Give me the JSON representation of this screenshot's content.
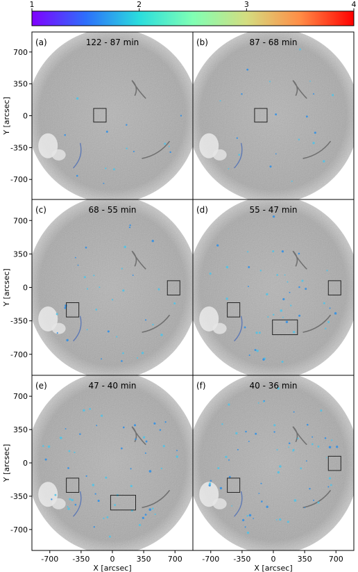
{
  "chart_data": {
    "type": "heatmap",
    "colorbar": {
      "ticks": [
        "1",
        "2",
        "3",
        "4"
      ],
      "range": [
        1,
        4
      ],
      "colormap": "rainbow",
      "colors": [
        "#8000ff",
        "#2d6ffb",
        "#2adddd",
        "#80ffb4",
        "#d4dd80",
        "#ff8d46",
        "#ff0000"
      ]
    },
    "xlabel": "X [arcsec]",
    "ylabel": "Y [arcsec]",
    "xticks": [
      "-700",
      "-350",
      "0",
      "350",
      "700"
    ],
    "yticks": [
      "700",
      "350",
      "0",
      "-350",
      "-700"
    ],
    "xlim": [
      -900,
      900
    ],
    "ylim": [
      -920,
      920
    ],
    "panels": [
      {
        "label": "(a)",
        "title": "122 - 87 min",
        "boxes": [
          {
            "x0": -210,
            "x1": -70,
            "y0": -70,
            "y1": 80
          }
        ]
      },
      {
        "label": "(b)",
        "title": "87 - 68 min",
        "boxes": [
          {
            "x0": -210,
            "x1": -70,
            "y0": -70,
            "y1": 80
          }
        ]
      },
      {
        "label": "(c)",
        "title": "68 - 55 min",
        "boxes": [
          {
            "x0": -515,
            "x1": -375,
            "y0": -310,
            "y1": -160
          },
          {
            "x0": 615,
            "x1": 755,
            "y0": -80,
            "y1": 70
          }
        ]
      },
      {
        "label": "(d)",
        "title": "55 - 47 min",
        "boxes": [
          {
            "x0": -515,
            "x1": -375,
            "y0": -310,
            "y1": -160
          },
          {
            "x0": 615,
            "x1": 755,
            "y0": -80,
            "y1": 70
          },
          {
            "x0": -10,
            "x1": 270,
            "y0": -495,
            "y1": -340
          }
        ]
      },
      {
        "label": "(e)",
        "title": "47 - 40 min",
        "boxes": [
          {
            "x0": -515,
            "x1": -375,
            "y0": -310,
            "y1": -160
          },
          {
            "x0": -20,
            "x1": 260,
            "y0": -495,
            "y1": -340
          }
        ]
      },
      {
        "label": "(f)",
        "title": "40 - 36 min",
        "boxes": [
          {
            "x0": -515,
            "x1": -375,
            "y0": -310,
            "y1": -160
          },
          {
            "x0": 615,
            "x1": 755,
            "y0": -80,
            "y1": 70
          }
        ]
      }
    ]
  }
}
